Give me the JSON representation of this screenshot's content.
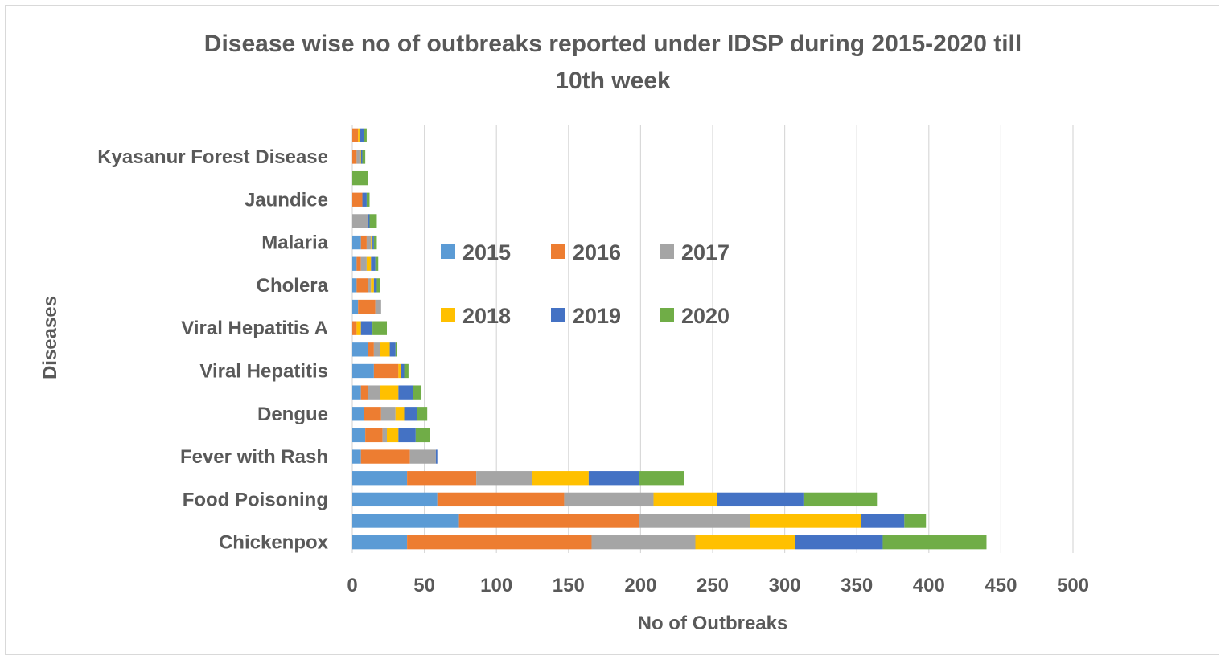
{
  "chart_data": {
    "type": "bar",
    "orientation": "horizontal",
    "stacked": true,
    "title_line1": "Disease wise no of outbreaks reported under IDSP during 2015-2020 till",
    "title_line2": "10th week",
    "xlabel": "No of Outbreaks",
    "ylabel": "Diseases",
    "xlim": [
      0,
      500
    ],
    "x_ticks": [
      "0",
      "50",
      "100",
      "150",
      "200",
      "250",
      "300",
      "350",
      "400",
      "450",
      "500"
    ],
    "grid": "vertical major gridlines",
    "legend_position": "inside plot, center",
    "categories": [
      "Chickenpox",
      "",
      "Food Poisoning",
      "",
      "Fever with Rash",
      "",
      "Dengue",
      "",
      "Viral Hepatitis",
      "",
      "Viral Hepatitis A",
      "",
      "Cholera",
      "",
      "Malaria",
      "",
      "Jaundice",
      "",
      "Kyasanur Forest Disease",
      ""
    ],
    "series": [
      {
        "name": "2015",
        "color": "#5b9bd5",
        "values": [
          38,
          74,
          59,
          38,
          6,
          9,
          8,
          6,
          15,
          11,
          0,
          4,
          3,
          3,
          6,
          0,
          0,
          0,
          0,
          0
        ]
      },
      {
        "name": "2016",
        "color": "#ed7d31",
        "values": [
          128,
          125,
          88,
          48,
          34,
          12,
          12,
          5,
          17,
          4,
          3,
          12,
          8,
          3,
          4,
          0,
          7,
          0,
          3,
          4
        ]
      },
      {
        "name": "2017",
        "color": "#a5a5a5",
        "values": [
          72,
          77,
          62,
          39,
          18,
          3,
          10,
          8,
          0,
          4,
          0,
          4,
          2,
          4,
          3,
          11,
          0,
          0,
          2,
          0
        ]
      },
      {
        "name": "2018",
        "color": "#ffc000",
        "values": [
          69,
          77,
          44,
          39,
          0,
          8,
          6,
          13,
          2,
          7,
          3,
          0,
          2,
          3,
          1,
          0,
          0,
          0,
          1,
          1
        ]
      },
      {
        "name": "2019",
        "color": "#4472c4",
        "values": [
          61,
          30,
          60,
          35,
          1,
          12,
          9,
          10,
          2,
          4,
          8,
          0,
          2,
          3,
          1,
          1,
          3,
          0,
          1,
          3
        ]
      },
      {
        "name": "2020",
        "color": "#70ad47",
        "values": [
          72,
          15,
          51,
          31,
          0,
          10,
          7,
          6,
          3,
          1,
          10,
          0,
          2,
          2,
          2,
          5,
          2,
          11,
          2,
          2
        ]
      }
    ]
  }
}
